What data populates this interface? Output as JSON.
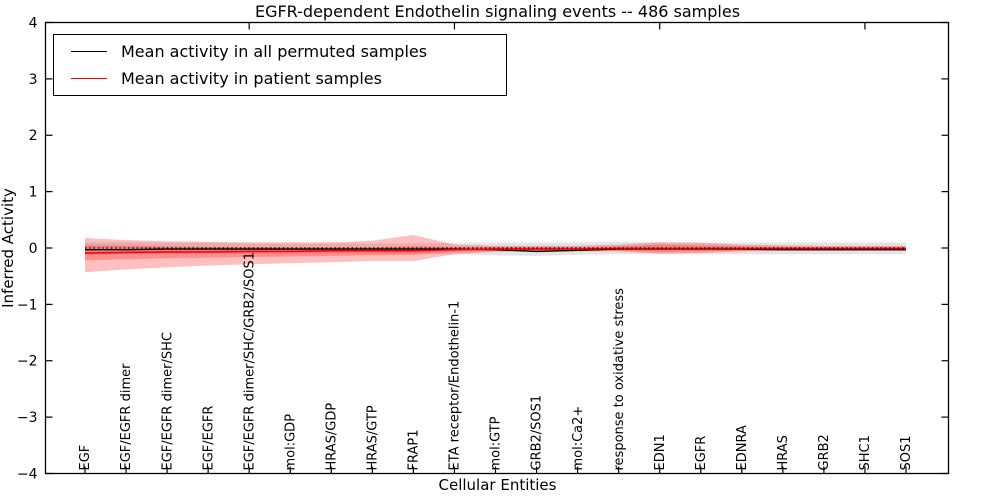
{
  "chart_data": {
    "type": "line",
    "title": "EGFR-dependent Endothelin signaling events -- 486 samples",
    "xlabel": "Cellular Entities",
    "ylabel": "Inferred Activity",
    "ylim": [
      -4,
      4
    ],
    "yticks": [
      -4,
      -3,
      -2,
      -1,
      0,
      1,
      2,
      3,
      4
    ],
    "ytick_labels": [
      "−4",
      "−3",
      "−2",
      "−1",
      "0",
      "1",
      "2",
      "3",
      "4"
    ],
    "x_top_tick_indices": [
      4,
      9,
      14,
      19
    ],
    "grid": false,
    "legend_position": "upper left",
    "legend": [
      {
        "label": "Mean activity in all permuted samples",
        "color": "#000000"
      },
      {
        "label": "Mean activity in patient samples",
        "color": "#ff0000"
      }
    ],
    "zero_line": {
      "y": 0,
      "style": "dotted",
      "color": "#000000"
    },
    "categories": [
      "EGF",
      "EGF/EGFR dimer",
      "EGF/EGFR dimer/SHC",
      "EGF/EGFR",
      "EGF/EGFR dimer/SHC/GRB2/SOS1",
      "mol:GDP",
      "HRAS/GDP",
      "HRAS/GTP",
      "FRAP1",
      "ETA receptor/Endothelin-1",
      "mol:GTP",
      "GRB2/SOS1",
      "mol:Ca2+",
      "response to oxidative stress",
      "EDN1",
      "EGFR",
      "EDNRA",
      "HRAS",
      "GRB2",
      "SHC1",
      "SOS1"
    ],
    "series": [
      {
        "name": "Mean activity in all permuted samples",
        "color": "#000000",
        "values": [
          -0.03,
          -0.03,
          -0.02,
          -0.02,
          -0.02,
          -0.02,
          -0.02,
          -0.02,
          -0.02,
          -0.02,
          -0.03,
          -0.06,
          -0.04,
          -0.02,
          -0.02,
          -0.02,
          -0.02,
          -0.03,
          -0.03,
          -0.03,
          -0.03
        ]
      },
      {
        "name": "Mean activity in patient samples",
        "color": "#ff0000",
        "values": [
          -0.09,
          -0.08,
          -0.07,
          -0.07,
          -0.06,
          -0.06,
          -0.05,
          -0.05,
          -0.05,
          -0.03,
          -0.02,
          -0.02,
          -0.02,
          -0.01,
          -0.01,
          -0.01,
          -0.01,
          -0.01,
          -0.01,
          -0.01,
          -0.01
        ]
      }
    ],
    "bands": [
      {
        "name": "permuted-samples-range",
        "color": "#000000",
        "opacity": 0.1,
        "hi": [
          0.1,
          0.1,
          0.09,
          0.09,
          0.08,
          0.08,
          0.08,
          0.08,
          0.08,
          0.09,
          0.1,
          0.1,
          0.1,
          0.11,
          0.1,
          0.1,
          0.1,
          0.1,
          0.1,
          0.1,
          0.1
        ],
        "lo": [
          -0.12,
          -0.11,
          -0.11,
          -0.1,
          -0.1,
          -0.1,
          -0.1,
          -0.1,
          -0.1,
          -0.11,
          -0.13,
          -0.14,
          -0.12,
          -0.11,
          -0.11,
          -0.11,
          -0.11,
          -0.11,
          -0.11,
          -0.11,
          -0.11
        ]
      },
      {
        "name": "patient-samples-outer-range",
        "color": "#ff0000",
        "opacity": 0.25,
        "hi": [
          0.18,
          0.14,
          0.12,
          0.11,
          0.1,
          0.1,
          0.1,
          0.13,
          0.23,
          0.06,
          0.04,
          0.04,
          0.04,
          0.06,
          0.1,
          0.09,
          0.06,
          0.05,
          0.04,
          0.04,
          0.04
        ],
        "lo": [
          -0.43,
          -0.38,
          -0.34,
          -0.31,
          -0.29,
          -0.27,
          -0.25,
          -0.23,
          -0.23,
          -0.11,
          -0.07,
          -0.06,
          -0.06,
          -0.06,
          -0.1,
          -0.09,
          -0.06,
          -0.05,
          -0.05,
          -0.05,
          -0.05
        ]
      },
      {
        "name": "patient-samples-inner-range",
        "color": "#ff0000",
        "opacity": 0.25,
        "hi": [
          0.05,
          0.04,
          0.03,
          0.02,
          0.02,
          0.01,
          0.01,
          0.01,
          0.03,
          0.02,
          0.02,
          0.02,
          0.02,
          0.03,
          0.06,
          0.05,
          0.03,
          0.02,
          0.02,
          0.02,
          0.02
        ],
        "lo": [
          -0.22,
          -0.2,
          -0.18,
          -0.17,
          -0.16,
          -0.15,
          -0.14,
          -0.13,
          -0.12,
          -0.07,
          -0.05,
          -0.05,
          -0.05,
          -0.05,
          -0.07,
          -0.06,
          -0.05,
          -0.04,
          -0.04,
          -0.04,
          -0.04
        ]
      }
    ]
  }
}
